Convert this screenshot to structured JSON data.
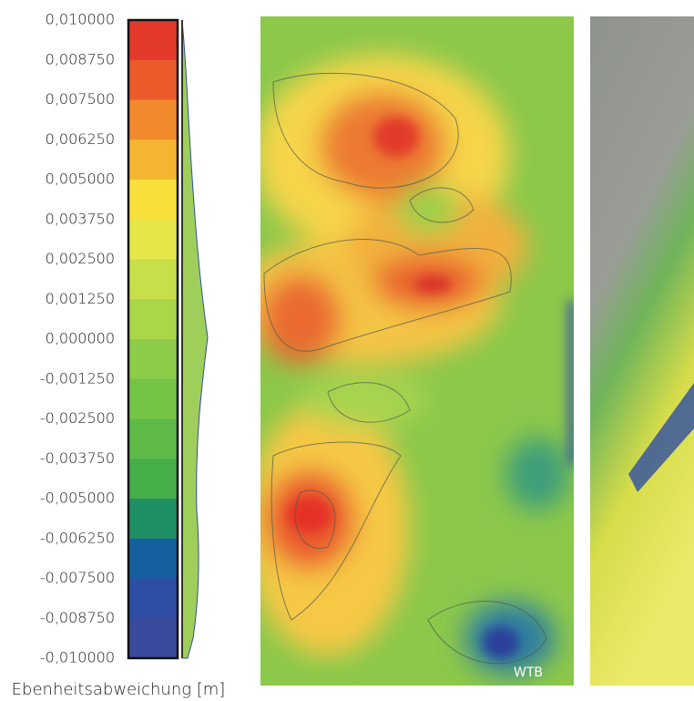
{
  "legend": {
    "labels": [
      "0,010000",
      "0,008750",
      "0,007500",
      "0,006250",
      "0,005000",
      "0,003750",
      "0,002500",
      "0,001250",
      "0,000000",
      "-0,001250",
      "-0,002500",
      "-0,003750",
      "-0,005000",
      "-0,006250",
      "-0,007500",
      "-0,008750",
      "-0,010000"
    ],
    "colors": [
      "#e43a2b",
      "#ea5a2b",
      "#f08a2c",
      "#f6b531",
      "#f8e03b",
      "#e6e64a",
      "#c9df4a",
      "#aad64a",
      "#8ccc48",
      "#76c446",
      "#5eba46",
      "#45ae48",
      "#1f9066",
      "#14609e",
      "#2e4ea4",
      "#3a4a9c"
    ]
  },
  "caption": "Ebenheitsabweichung [m]",
  "image_label": "WTB"
}
